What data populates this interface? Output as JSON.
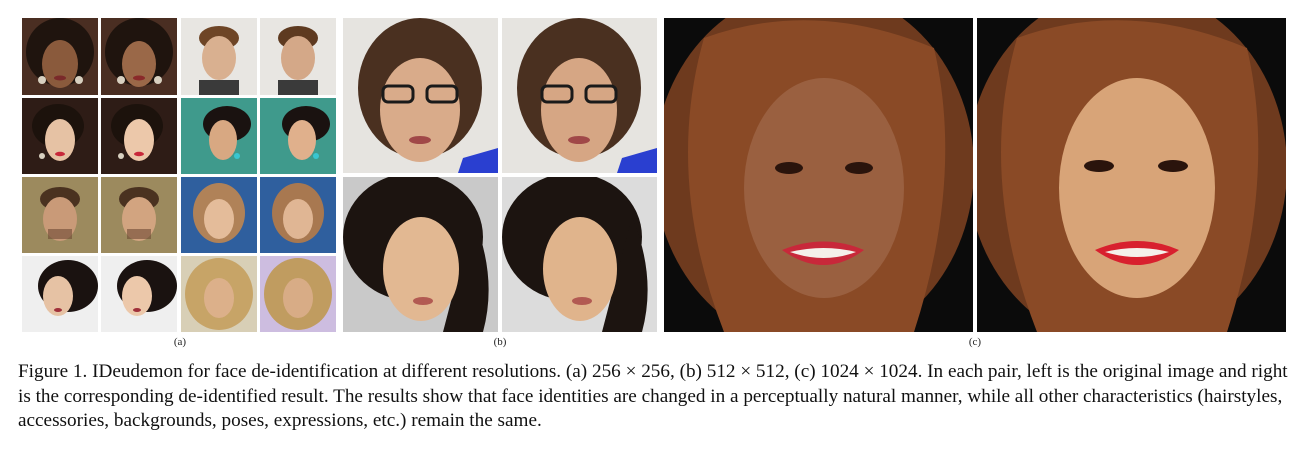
{
  "figure": {
    "panels": [
      {
        "label": "(a)",
        "tiles": [
          "face-dark-hair-earrings-original",
          "face-dark-hair-earrings-deidentified",
          "face-man-white-bg-original",
          "face-man-white-bg-deidentified",
          "face-woman-curls-original",
          "face-woman-curls-deidentified",
          "face-woman-teal-bg-original",
          "face-woman-teal-bg-deidentified",
          "face-man-beard-original",
          "face-man-beard-deidentified",
          "face-woman-blue-bg-original",
          "face-woman-blue-bg-deidentified",
          "face-woman-head-tilt-original",
          "face-woman-head-tilt-deidentified",
          "face-woman-blonde-curls-original",
          "face-woman-blonde-curls-deidentified"
        ]
      },
      {
        "label": "(b)",
        "tiles": [
          "face-woman-glasses-original",
          "face-woman-glasses-deidentified",
          "face-woman-black-hair-original",
          "face-woman-black-hair-deidentified"
        ]
      },
      {
        "label": "(c)",
        "tiles": [
          "face-woman-red-lips-original",
          "face-woman-red-lips-deidentified"
        ]
      }
    ]
  },
  "caption": {
    "text": "Figure 1. IDeudemon for face de-identification at different resolutions. (a) 256 × 256, (b) 512 × 512, (c) 1024 × 1024. In each pair, left is the original image and right is the corresponding de-identified result. The results show that face identities are changed in a perceptually natural manner, while all other characteristics (hairstyles, accessories, backgrounds, poses, expressions, etc.) remain the same."
  },
  "colors": {
    "skin_dark": "#8a5a3c",
    "skin_medium": "#c99a78",
    "skin_light": "#e6c2a4",
    "hair_dark": "#2a1c14",
    "hair_brown": "#6e4526",
    "hair_blonde": "#c7a467",
    "bg_light": "#e6e4e0",
    "bg_teal": "#3f9a8c",
    "bg_blue": "#2f5f9e",
    "bg_olive": "#9c8a5e",
    "bg_lavender": "#cdbde0",
    "bg_black": "#0b0b0b",
    "lips_red": "#c8283a"
  }
}
